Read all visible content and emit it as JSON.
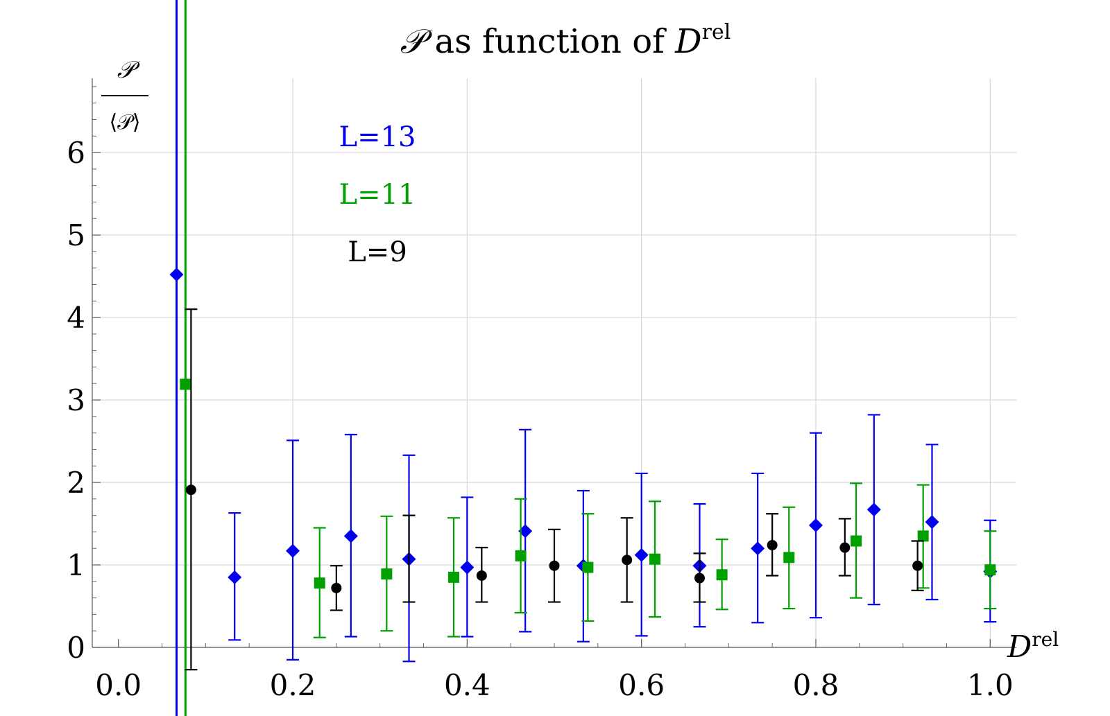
{
  "chart_data": {
    "type": "scatter",
    "title": {
      "symbol": "𝒫",
      "middle": " as function of ",
      "variable": "D",
      "superscript": "rel"
    },
    "ylabel": {
      "numerator": "𝒫",
      "denominator": "⟨𝒫⟩"
    },
    "xlabel": {
      "variable": "D",
      "superscript": "rel"
    },
    "xlim": [
      -0.03,
      1.03
    ],
    "ylim": [
      0,
      6.9
    ],
    "x_ticks": [
      "0.0",
      "0.2",
      "0.4",
      "0.6",
      "0.8",
      "1.0"
    ],
    "x_tick_values": [
      0.0,
      0.2,
      0.4,
      0.6,
      0.8,
      1.0
    ],
    "y_ticks": [
      "0",
      "1",
      "2",
      "3",
      "4",
      "5",
      "6"
    ],
    "y_tick_values": [
      0,
      1,
      2,
      3,
      4,
      5,
      6
    ],
    "grid": true,
    "legend": [
      {
        "label": "L=13",
        "color": "#0000ee"
      },
      {
        "label": "L=11",
        "color": "#00a000"
      },
      {
        "label": "L=9",
        "color": "#000000"
      }
    ],
    "series": [
      {
        "name": "L=13",
        "color": "#0000ee",
        "marker": "diamond",
        "vline_x": 0.0667,
        "points": [
          {
            "x": 0.0667,
            "y": 4.52,
            "lo": null,
            "hi": null
          },
          {
            "x": 0.1333,
            "y": 0.85,
            "lo": 0.09,
            "hi": 1.63
          },
          {
            "x": 0.2,
            "y": 1.17,
            "lo": -0.15,
            "hi": 2.51
          },
          {
            "x": 0.2667,
            "y": 1.35,
            "lo": 0.13,
            "hi": 2.58
          },
          {
            "x": 0.3333,
            "y": 1.07,
            "lo": -0.17,
            "hi": 2.33
          },
          {
            "x": 0.4,
            "y": 0.97,
            "lo": 0.13,
            "hi": 1.82
          },
          {
            "x": 0.4667,
            "y": 1.41,
            "lo": 0.19,
            "hi": 2.64
          },
          {
            "x": 0.5333,
            "y": 0.99,
            "lo": 0.07,
            "hi": 1.9
          },
          {
            "x": 0.6,
            "y": 1.12,
            "lo": 0.14,
            "hi": 2.11
          },
          {
            "x": 0.6667,
            "y": 0.99,
            "lo": 0.25,
            "hi": 1.74
          },
          {
            "x": 0.7333,
            "y": 1.2,
            "lo": 0.3,
            "hi": 2.11
          },
          {
            "x": 0.8,
            "y": 1.48,
            "lo": 0.36,
            "hi": 2.6
          },
          {
            "x": 0.8667,
            "y": 1.67,
            "lo": 0.52,
            "hi": 2.82
          },
          {
            "x": 0.9333,
            "y": 1.52,
            "lo": 0.58,
            "hi": 2.46
          },
          {
            "x": 1.0,
            "y": 0.92,
            "lo": 0.31,
            "hi": 1.54
          }
        ]
      },
      {
        "name": "L=11",
        "color": "#00a000",
        "marker": "square",
        "vline_x": 0.0769,
        "points": [
          {
            "x": 0.0769,
            "y": 3.19,
            "lo": null,
            "hi": null
          },
          {
            "x": 0.2308,
            "y": 0.78,
            "lo": 0.12,
            "hi": 1.45
          },
          {
            "x": 0.3077,
            "y": 0.89,
            "lo": 0.2,
            "hi": 1.59
          },
          {
            "x": 0.3846,
            "y": 0.85,
            "lo": 0.13,
            "hi": 1.57
          },
          {
            "x": 0.4615,
            "y": 1.11,
            "lo": 0.42,
            "hi": 1.8
          },
          {
            "x": 0.5385,
            "y": 0.97,
            "lo": 0.32,
            "hi": 1.62
          },
          {
            "x": 0.6154,
            "y": 1.07,
            "lo": 0.37,
            "hi": 1.77
          },
          {
            "x": 0.6923,
            "y": 0.88,
            "lo": 0.46,
            "hi": 1.31
          },
          {
            "x": 0.7692,
            "y": 1.09,
            "lo": 0.47,
            "hi": 1.7
          },
          {
            "x": 0.8462,
            "y": 1.29,
            "lo": 0.6,
            "hi": 1.99
          },
          {
            "x": 0.9231,
            "y": 1.35,
            "lo": 0.72,
            "hi": 1.97
          },
          {
            "x": 1.0,
            "y": 0.94,
            "lo": 0.47,
            "hi": 1.41
          }
        ]
      },
      {
        "name": "L=9",
        "color": "#000000",
        "marker": "circle",
        "vline_x": null,
        "points": [
          {
            "x": 0.0833,
            "y": 1.91,
            "lo": -0.27,
            "hi": 4.1
          },
          {
            "x": 0.25,
            "y": 0.72,
            "lo": 0.45,
            "hi": 0.99
          },
          {
            "x": 0.3333,
            "y": null,
            "lo": 0.55,
            "hi": 1.6
          },
          {
            "x": 0.4167,
            "y": 0.87,
            "lo": 0.55,
            "hi": 1.21
          },
          {
            "x": 0.5,
            "y": 0.99,
            "lo": 0.55,
            "hi": 1.43
          },
          {
            "x": 0.5833,
            "y": 1.06,
            "lo": 0.55,
            "hi": 1.57
          },
          {
            "x": 0.6667,
            "y": 0.84,
            "lo": 0.55,
            "hi": 1.14
          },
          {
            "x": 0.75,
            "y": 1.24,
            "lo": 0.87,
            "hi": 1.62
          },
          {
            "x": 0.8333,
            "y": 1.21,
            "lo": 0.87,
            "hi": 1.56
          },
          {
            "x": 0.9167,
            "y": 0.99,
            "lo": 0.69,
            "hi": 1.29
          }
        ]
      }
    ]
  }
}
